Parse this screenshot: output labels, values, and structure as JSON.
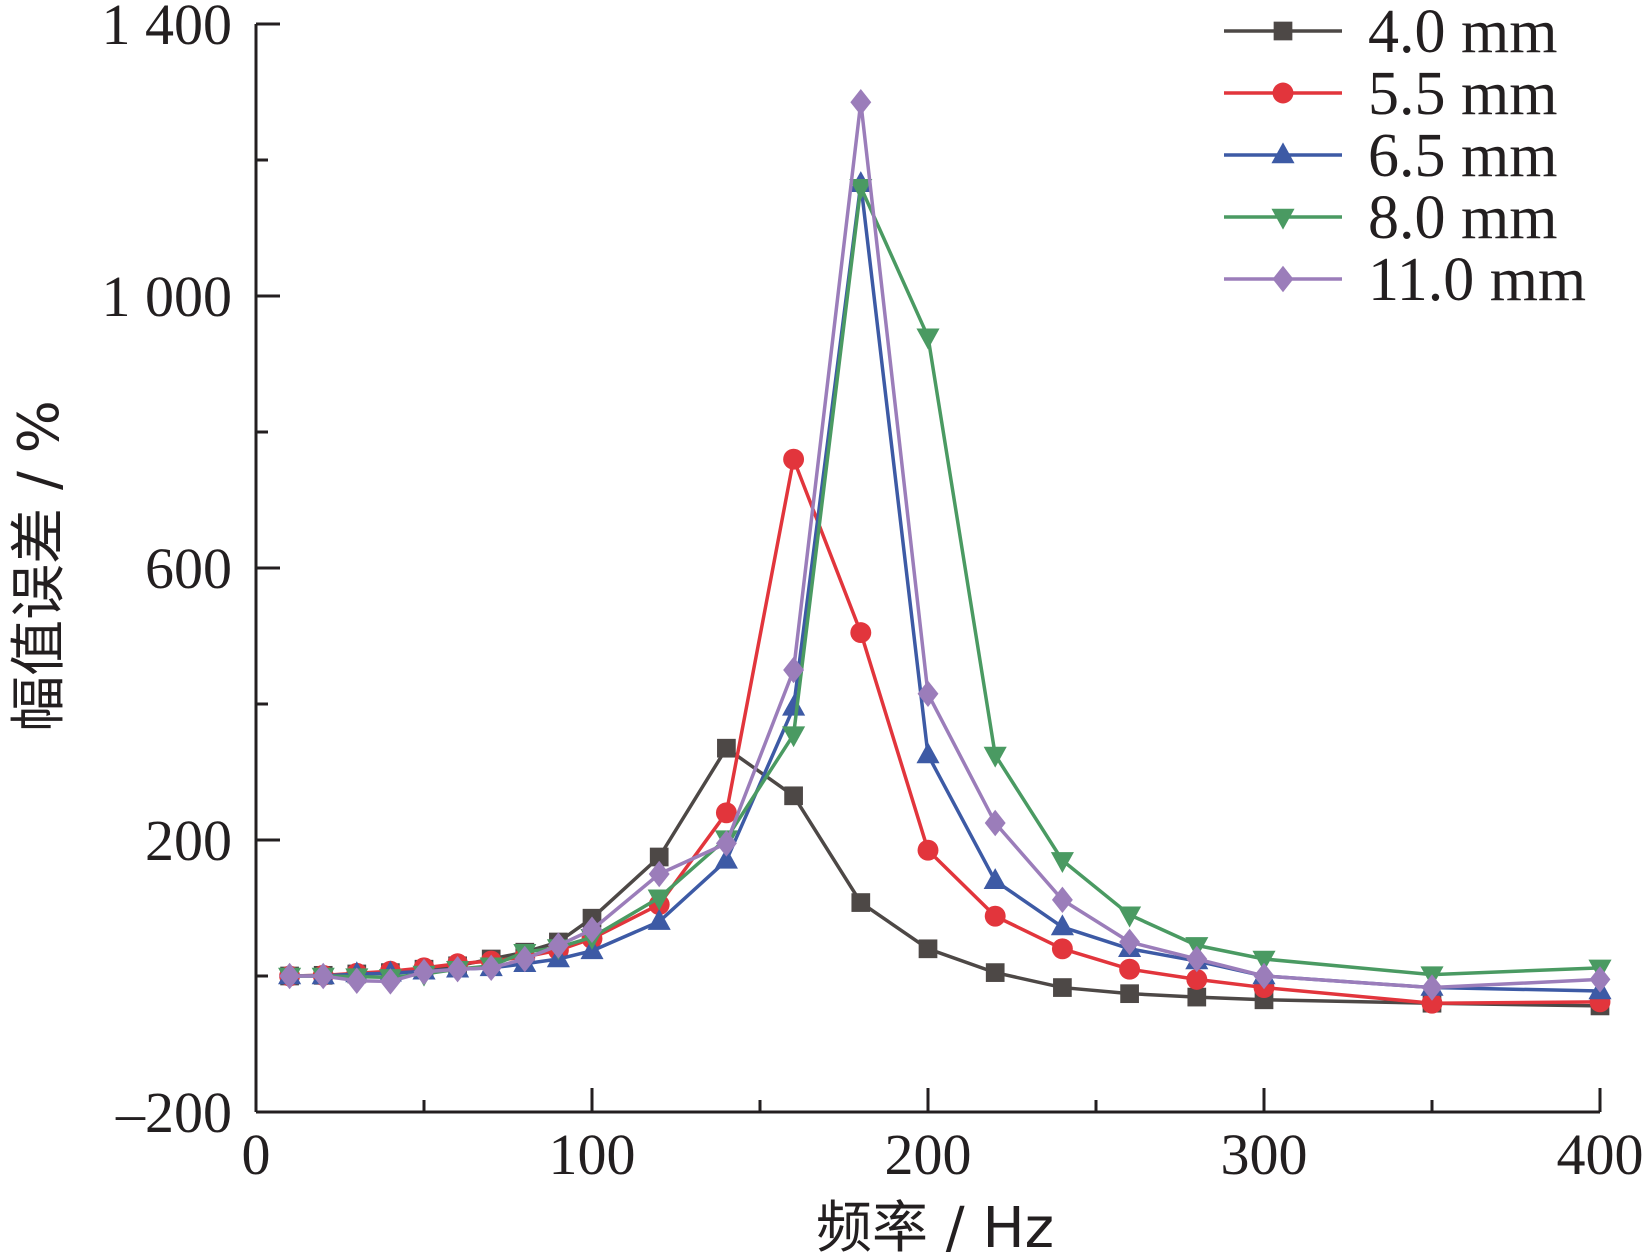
{
  "chart_data": {
    "type": "line",
    "title": "",
    "xlabel": "频率 / Hz",
    "ylabel": "幅值误差 / %",
    "xlim": [
      0,
      400
    ],
    "ylim": [
      -200,
      1400
    ],
    "xticks": [
      0,
      100,
      200,
      300,
      400
    ],
    "xtick_labels": [
      "0",
      "100",
      "200",
      "300",
      "400"
    ],
    "yticks": [
      -200,
      200,
      600,
      1000,
      1400
    ],
    "ytick_labels": [
      "–200",
      "200",
      "600",
      "1 000",
      "1 400"
    ],
    "grid": false,
    "legend_position": "top-right",
    "x": [
      10,
      20,
      30,
      40,
      50,
      60,
      70,
      80,
      90,
      100,
      120,
      140,
      160,
      180,
      200,
      220,
      240,
      260,
      280,
      300,
      350,
      400
    ],
    "series": [
      {
        "name": "4.0 mm",
        "color": "#4d4846",
        "marker": "square",
        "values": [
          0,
          1,
          3,
          5,
          10,
          15,
          25,
          35,
          50,
          85,
          175,
          335,
          265,
          108,
          40,
          5,
          -17,
          -26,
          -31,
          -35,
          -40,
          -44
        ]
      },
      {
        "name": "5.5 mm",
        "color": "#e2353c",
        "marker": "circle",
        "values": [
          0,
          1,
          4,
          7,
          12,
          18,
          22,
          28,
          38,
          55,
          105,
          240,
          760,
          505,
          185,
          88,
          40,
          10,
          -5,
          -17,
          -40,
          -38
        ]
      },
      {
        "name": "6.5 mm",
        "color": "#3d5aa5",
        "marker": "triangle-up",
        "values": [
          0,
          0,
          3,
          4,
          7,
          10,
          12,
          18,
          25,
          37,
          80,
          170,
          395,
          1165,
          325,
          140,
          72,
          40,
          22,
          0,
          -17,
          -22
        ]
      },
      {
        "name": "8.0 mm",
        "color": "#4a9a62",
        "marker": "triangle-down",
        "values": [
          0,
          0,
          -1,
          -2,
          3,
          10,
          15,
          35,
          42,
          57,
          115,
          202,
          355,
          1160,
          940,
          325,
          170,
          90,
          45,
          25,
          2,
          12
        ]
      },
      {
        "name": "11.0 mm",
        "color": "#9b7dba",
        "marker": "diamond",
        "values": [
          0,
          0,
          -7,
          -8,
          6,
          10,
          12,
          25,
          45,
          68,
          150,
          195,
          450,
          1285,
          415,
          225,
          112,
          50,
          25,
          0,
          -17,
          -5
        ]
      }
    ]
  }
}
